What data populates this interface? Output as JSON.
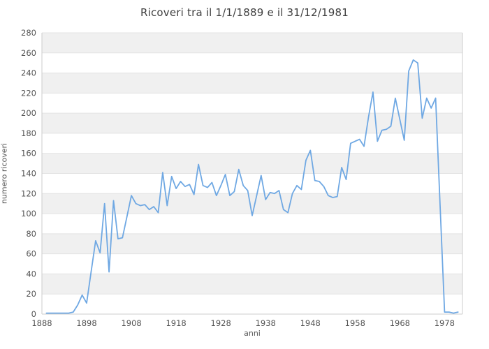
{
  "title": "Ricoveri tra il 1/1/1889 e il 31/12/1981",
  "chart_data": {
    "type": "line",
    "title": "Ricoveri tra il 1/1/1889 e il 31/12/1981",
    "xlabel": "anni",
    "ylabel": "numero ricoveri",
    "xlim": [
      1888,
      1982
    ],
    "ylim": [
      0,
      280
    ],
    "xticks": [
      1888,
      1898,
      1908,
      1918,
      1928,
      1938,
      1948,
      1958,
      1968,
      1978
    ],
    "yticks": [
      0,
      20,
      40,
      60,
      80,
      100,
      120,
      140,
      160,
      180,
      200,
      220,
      240,
      260,
      280
    ],
    "grid": true,
    "legend": false,
    "line_color": "#6fa8e3",
    "band_color": "#f0f0f0",
    "grid_color": "#e3e3e3",
    "axis_color": "#cccccc",
    "x": [
      1889,
      1890,
      1891,
      1892,
      1893,
      1894,
      1895,
      1896,
      1897,
      1898,
      1899,
      1900,
      1901,
      1902,
      1903,
      1904,
      1905,
      1906,
      1907,
      1908,
      1909,
      1910,
      1911,
      1912,
      1913,
      1914,
      1915,
      1916,
      1917,
      1918,
      1919,
      1920,
      1921,
      1922,
      1923,
      1924,
      1925,
      1926,
      1927,
      1928,
      1929,
      1930,
      1931,
      1932,
      1933,
      1934,
      1935,
      1936,
      1937,
      1938,
      1939,
      1940,
      1941,
      1942,
      1943,
      1944,
      1945,
      1946,
      1947,
      1948,
      1949,
      1950,
      1951,
      1952,
      1953,
      1954,
      1955,
      1956,
      1957,
      1958,
      1959,
      1960,
      1961,
      1962,
      1963,
      1964,
      1965,
      1966,
      1967,
      1968,
      1969,
      1970,
      1971,
      1972,
      1973,
      1974,
      1975,
      1976,
      1977,
      1978,
      1979,
      1980,
      1981
    ],
    "values": [
      1,
      1,
      1,
      1,
      1,
      1,
      2,
      9,
      19,
      11,
      42,
      73,
      61,
      110,
      42,
      113,
      75,
      76,
      97,
      118,
      110,
      108,
      109,
      104,
      107,
      101,
      141,
      108,
      137,
      125,
      132,
      127,
      129,
      119,
      149,
      128,
      126,
      131,
      118,
      128,
      139,
      118,
      122,
      144,
      128,
      123,
      98,
      118,
      138,
      114,
      121,
      120,
      123,
      104,
      101,
      120,
      128,
      124,
      153,
      163,
      133,
      132,
      127,
      118,
      116,
      117,
      146,
      134,
      170,
      172,
      174,
      167,
      196,
      221,
      172,
      183,
      184,
      187,
      215,
      194,
      173,
      242,
      253,
      250,
      195,
      215,
      205,
      215,
      108,
      2,
      2,
      1,
      2
    ]
  }
}
